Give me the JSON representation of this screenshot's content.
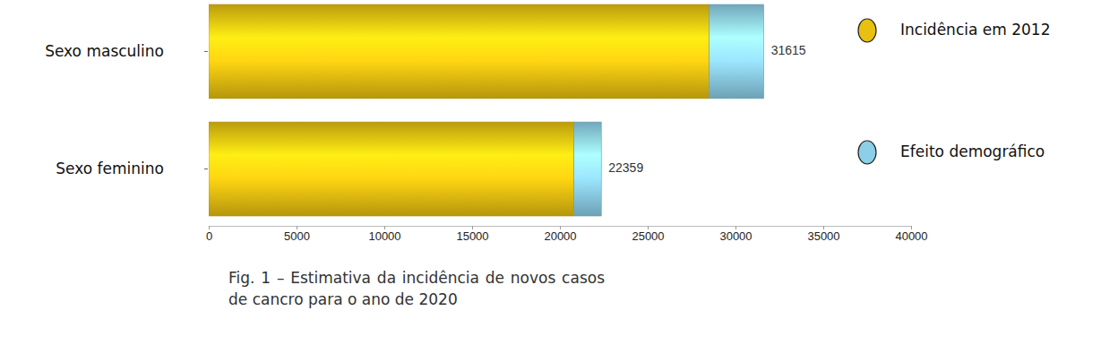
{
  "chart_data": {
    "type": "bar",
    "orientation": "horizontal",
    "stacked": true,
    "title": "Fig. 1 – Estimativa da incidência de novos casos de cancro para o ano de 2020",
    "categories": [
      "Sexo masculino",
      "Sexo feminino"
    ],
    "series": [
      {
        "name": "Incidência em 2012",
        "color": "#e8c010",
        "values": [
          28500,
          20800
        ]
      },
      {
        "name": "Efeito demográfico",
        "color": "#8ccfe8",
        "values": [
          3115,
          1559
        ]
      }
    ],
    "totals": [
      31615,
      22359
    ],
    "xlim": [
      0,
      40000
    ],
    "xticks": [
      0,
      5000,
      10000,
      15000,
      20000,
      25000,
      30000,
      35000,
      40000
    ],
    "grid": false,
    "legend": "right"
  }
}
